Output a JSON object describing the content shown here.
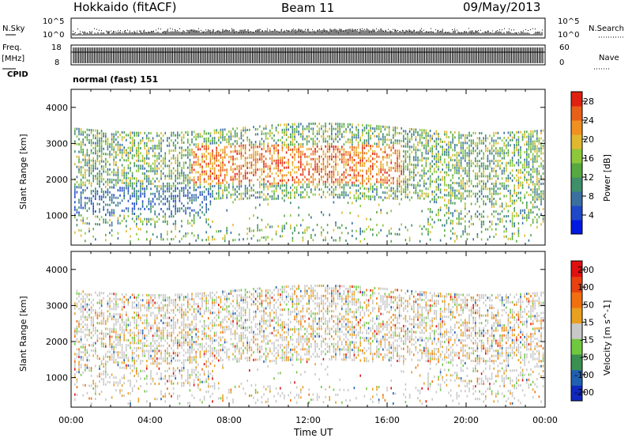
{
  "header": {
    "station": "Hokkaido (fitACF)",
    "beam": "Beam 11",
    "date": "09/May/2013"
  },
  "side_labels": {
    "nsky": "N.Sky",
    "freq": "Freq.",
    "freq_unit": "[MHz]",
    "cpid": "CPID",
    "nsearch": "N.Search",
    "nave": "Nave"
  },
  "cpid_text": "normal (fast) 151",
  "strip_ticks": {
    "nsky_top": "10^5",
    "nsky_bottom": "10^0",
    "freq_top": "18",
    "freq_bottom": "8",
    "nave_top": "60",
    "nave_bottom": "0",
    "nsearch_top": "10^5",
    "nsearch_bottom": "10^0"
  },
  "chart_data": [
    {
      "type": "heatmap",
      "panel": "power",
      "ylabel": "Slant Range [km]",
      "yticks": [
        "1000",
        "2000",
        "3000",
        "4000"
      ],
      "ylim": [
        180,
        4500
      ],
      "colorbar": {
        "label": "Power [dB]",
        "ticks": [
          "4",
          "8",
          "12",
          "16",
          "20",
          "24",
          "28"
        ],
        "range": [
          0,
          30
        ],
        "colors": [
          "#0018e0",
          "#1f48c8",
          "#3a6fa0",
          "#3f8f6a",
          "#57a840",
          "#8cc83a",
          "#e0b830",
          "#f09020",
          "#e86018",
          "#e02010"
        ]
      }
    },
    {
      "type": "heatmap",
      "panel": "velocity",
      "ylabel": "Slant Range [km]",
      "yticks": [
        "1000",
        "2000",
        "3000",
        "4000"
      ],
      "ylim": [
        180,
        4500
      ],
      "xlabel": "Time UT",
      "xticks": [
        "00:00",
        "04:00",
        "08:00",
        "12:00",
        "16:00",
        "20:00",
        "00:00"
      ],
      "colorbar": {
        "label": "Velocity [m s^-1]",
        "ticks": [
          "200",
          "100",
          "50",
          "15",
          "-15",
          "-50",
          "-100",
          "-200"
        ],
        "colors": [
          "#1028c0",
          "#2060b0",
          "#3a9050",
          "#70c840",
          "#c8c8c8",
          "#e8a020",
          "#f07010",
          "#e84010",
          "#e01010"
        ]
      }
    }
  ]
}
